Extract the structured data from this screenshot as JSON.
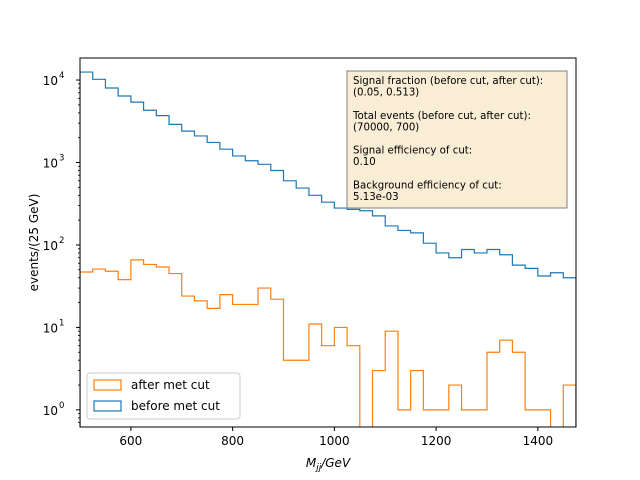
{
  "chart_data": {
    "type": "histogram",
    "xlabel": "M_jj/GeV",
    "ylabel": "events/(25 GeV)",
    "xlim": [
      500,
      1475
    ],
    "ylim_log": [
      0.62,
      18500
    ],
    "yscale": "log",
    "x_ticks": [
      600,
      800,
      1000,
      1200,
      1400
    ],
    "y_ticks": [
      {
        "value": 1,
        "exp": "0"
      },
      {
        "value": 10,
        "exp": "1"
      },
      {
        "value": 100,
        "exp": "2"
      },
      {
        "value": 1000,
        "exp": "3"
      },
      {
        "value": 10000,
        "exp": "4"
      }
    ],
    "bin_edges": [
      500,
      525,
      550,
      575,
      600,
      625,
      650,
      675,
      700,
      725,
      750,
      775,
      800,
      825,
      850,
      875,
      900,
      925,
      950,
      975,
      1000,
      1025,
      1050,
      1075,
      1100,
      1125,
      1150,
      1175,
      1200,
      1225,
      1250,
      1275,
      1300,
      1325,
      1350,
      1375,
      1400,
      1425,
      1450,
      1475
    ],
    "series": [
      {
        "name": "before met cut",
        "color": "#1f77b4",
        "values": [
          12500,
          10200,
          8000,
          6400,
          5400,
          4300,
          3700,
          2900,
          2400,
          2100,
          1750,
          1450,
          1200,
          1050,
          950,
          800,
          600,
          490,
          400,
          330,
          280,
          270,
          260,
          225,
          170,
          150,
          140,
          105,
          80,
          70,
          88,
          80,
          88,
          76,
          57,
          52,
          42,
          46,
          40
        ]
      },
      {
        "name": "after met cut",
        "color": "#ff7f0e",
        "values": [
          47,
          51,
          48,
          38,
          66,
          58,
          54,
          45,
          24,
          21,
          17,
          25,
          19,
          19,
          30,
          22,
          4,
          4,
          11,
          6,
          10,
          6,
          0,
          3,
          9,
          1,
          3,
          1,
          1,
          2,
          1,
          1,
          5,
          7,
          5,
          1,
          1,
          0,
          2
        ]
      }
    ],
    "legend": {
      "position": "lower-left",
      "entries": [
        "after met cut",
        "before met cut"
      ]
    },
    "annotation": {
      "position": "top-right",
      "lines": [
        "Signal fraction (before cut, after cut):",
        "(0.05, 0.513)",
        "",
        "Total events (before cut, after cut):",
        "(70000, 700)",
        "",
        "Signal efficiency of cut:",
        "0.10",
        "",
        "Background efficiency of cut:",
        "5.13e-03"
      ]
    }
  }
}
